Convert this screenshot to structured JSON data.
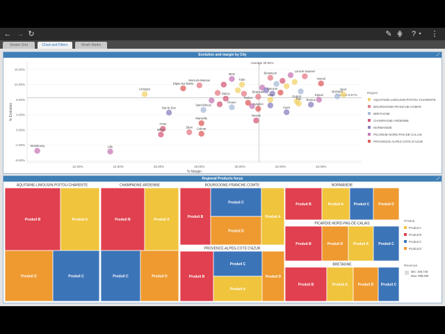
{
  "tabs": [
    {
      "label": "Simple Grid"
    },
    {
      "label": "Chart and Filters"
    },
    {
      "label": "Wrath Maths"
    }
  ],
  "scatter": {
    "title": "Evolution and margin by City",
    "ylabel": "% Evolution",
    "xlabel": "% Margin",
    "legend_title": "Region",
    "x_ticks": [
      "22.00%",
      "24.00%",
      "26.00%",
      "28.00%",
      "30.00%",
      "32.00%",
      "34.00%"
    ],
    "y_ticks": [
      "16.00%",
      "12.00%",
      "8.00%",
      "4.00%",
      "0.00%",
      "-4.00%",
      "-8.00%"
    ],
    "avg_y_label": "Average 30.94%",
    "avg_x_label": "Average 8.57%",
    "regions": [
      {
        "name": "AQUITAINE-LIMOUSIN-POITOU-CHARENTE",
        "color": "#f1d36a"
      },
      {
        "name": "BOURGOGNE-FRANCHE-COMTE",
        "color": "#e67b85"
      },
      {
        "name": "BRETAGNE",
        "color": "#a9bcd9"
      },
      {
        "name": "CHAMPAGNE-ARDENNE",
        "color": "#d45c7a"
      },
      {
        "name": "NORMANDIE",
        "color": "#8c7fc0"
      },
      {
        "name": "PICARDIE-NORD-PAS-DE-CALAIS",
        "color": "#c57ab6"
      },
      {
        "name": "PROVENCE-ALPES-COTE D'AZUR",
        "color": "#e05d5d"
      }
    ],
    "cities": [
      {
        "name": "Strasbourg",
        "x": 20.0,
        "y": -5.5,
        "r": 5
      },
      {
        "name": "Lille",
        "x": 23.6,
        "y": -5.7,
        "r": 5
      },
      {
        "name": "Limoges",
        "x": 25.3,
        "y": 9.5,
        "r": 0
      },
      {
        "name": "Arras",
        "x": 26.2,
        "y": 0.3,
        "r": 3
      },
      {
        "name": "Millon",
        "x": 26.1,
        "y": -1.2,
        "r": 3
      },
      {
        "name": "Bar-le-Duc",
        "x": 26.5,
        "y": 4.6,
        "r": 4
      },
      {
        "name": "Digne-les-Bains",
        "x": 27.2,
        "y": 11.0,
        "r": 6
      },
      {
        "name": "Mont-de-Marsan",
        "x": 28.0,
        "y": 11.8,
        "r": 1
      },
      {
        "name": "Saint-Brieuc",
        "x": 28.2,
        "y": 5.3,
        "r": 2
      },
      {
        "name": "Dijon",
        "x": 27.5,
        "y": -0.6,
        "r": 1
      },
      {
        "name": "Colmar",
        "x": 28.1,
        "y": -1.0,
        "r": 6
      },
      {
        "name": "Marseille",
        "x": 28.1,
        "y": 1.8,
        "r": 6
      },
      {
        "name": "Metz",
        "x": 29.6,
        "y": 13.5,
        "r": 5
      },
      {
        "name": "Tulle",
        "x": 30.1,
        "y": 12.0,
        "r": 0
      },
      {
        "name": "Nancy",
        "x": 29.3,
        "y": 8.3,
        "r": 3
      },
      {
        "name": "Rouen",
        "x": 29.6,
        "y": 6.0,
        "r": 2
      },
      {
        "name": "Toulon",
        "x": 30.4,
        "y": 7.2,
        "r": 6
      },
      {
        "name": "Beauvais",
        "x": 30.9,
        "y": 8.8,
        "r": 1
      },
      {
        "name": "Nevers",
        "x": 30.8,
        "y": 2.5,
        "r": 3
      },
      {
        "name": "Avignon",
        "x": 30.9,
        "y": 5.6,
        "r": 6
      },
      {
        "name": "Besançon",
        "x": 31.5,
        "y": 13.8,
        "r": 1
      },
      {
        "name": "Alençon",
        "x": 31.6,
        "y": 9.6,
        "r": 4
      },
      {
        "name": "Gex",
        "x": 31.5,
        "y": 8.0,
        "r": 0
      },
      {
        "name": "Caen",
        "x": 32.3,
        "y": 4.7,
        "r": 4
      },
      {
        "name": "Guéret",
        "x": 32.8,
        "y": 7.6,
        "r": 0
      },
      {
        "name": "Pau",
        "x": 32.9,
        "y": 7.0,
        "r": 0
      },
      {
        "name": "Lons-le-Saunier",
        "x": 33.2,
        "y": 14.2,
        "r": 1
      },
      {
        "name": "Vesoul",
        "x": 34.0,
        "y": 12.3,
        "r": 6
      },
      {
        "name": "Épinal",
        "x": 33.9,
        "y": 8.0,
        "r": 5
      },
      {
        "name": "Évreux",
        "x": 33.5,
        "y": 6.7,
        "r": 4
      },
      {
        "name": "Niort",
        "x": 35.1,
        "y": 9.4,
        "r": 0
      },
      {
        "name": "Quimper",
        "x": 34.8,
        "y": 8.9,
        "r": 2
      }
    ],
    "extra_points": [
      {
        "x": 29.2,
        "y": 12.0,
        "r": 3
      },
      {
        "x": 29.9,
        "y": 10.5,
        "r": 0
      },
      {
        "x": 28.9,
        "y": 9.8,
        "r": 1
      },
      {
        "x": 31.1,
        "y": 11.2,
        "r": 5
      },
      {
        "x": 31.3,
        "y": 10.5,
        "r": 4
      },
      {
        "x": 31.8,
        "y": 12.2,
        "r": 2
      },
      {
        "x": 32.1,
        "y": 13.0,
        "r": 3
      },
      {
        "x": 32.3,
        "y": 11.6,
        "r": 0
      },
      {
        "x": 32.7,
        "y": 12.7,
        "r": 0
      },
      {
        "x": 32.5,
        "y": 14.5,
        "r": 5
      },
      {
        "x": 32.0,
        "y": 9.9,
        "r": 6
      },
      {
        "x": 33.0,
        "y": 10.2,
        "r": 2
      },
      {
        "x": 31.5,
        "y": 6.5,
        "r": 4
      },
      {
        "x": 30.2,
        "y": 9.6,
        "r": 1
      },
      {
        "x": 28.6,
        "y": 7.8,
        "r": 5
      },
      {
        "x": 29.0,
        "y": 6.8,
        "r": 3
      },
      {
        "x": 30.6,
        "y": 6.3,
        "r": 5
      }
    ]
  },
  "treemap": {
    "title": "Regional Products focus",
    "legend_product_title": "Produit",
    "legend_revenue_title": "Revenue",
    "revenue_min": "Min: 196,749",
    "revenue_max": "Max: 985,609",
    "products": [
      {
        "name": "Produit A",
        "color": "#f0c43c"
      },
      {
        "name": "Produit B",
        "color": "#e0404f"
      },
      {
        "name": "Produit C",
        "color": "#3c74b8"
      },
      {
        "name": "Produit D",
        "color": "#ee9a30"
      }
    ],
    "groups": [
      {
        "name": "AQUITAINE-LIMOUSIN-POITOU-CHARENTE",
        "cells": [
          {
            "label": "Produit B",
            "p": 1
          },
          {
            "label": "Produit A",
            "p": 0
          },
          {
            "label": "Produit D",
            "p": 3
          },
          {
            "label": "Produit C",
            "p": 2
          }
        ]
      },
      {
        "name": "CHAMPAGNE-ARDENNE",
        "cells": [
          {
            "label": "Produit B",
            "p": 1
          },
          {
            "label": "Produit A",
            "p": 0
          },
          {
            "label": "Produit C",
            "p": 2
          },
          {
            "label": "Produit D",
            "p": 3
          }
        ]
      },
      {
        "name": "BOURGOGNE-FRANCHE-COMTE",
        "cells": [
          {
            "label": "Produit B",
            "p": 1
          },
          {
            "label": "Produit C",
            "p": 2
          },
          {
            "label": "Produit D",
            "p": 3
          },
          {
            "label": "Produit A",
            "p": 0
          }
        ]
      },
      {
        "name": "PROVENCE-ALPES-COTE D'AZUR",
        "cells": [
          {
            "label": "Produit B",
            "p": 1
          },
          {
            "label": "Produit C",
            "p": 2
          },
          {
            "label": "Produit A",
            "p": 0
          },
          {
            "label": "Produit D",
            "p": 3
          }
        ]
      },
      {
        "name": "NORMANDIE",
        "cells": [
          {
            "label": "Produit B",
            "p": 1
          },
          {
            "label": "Produit A",
            "p": 0
          },
          {
            "label": "Produit C",
            "p": 2
          },
          {
            "label": "Produit D",
            "p": 3
          }
        ]
      },
      {
        "name": "PICARDIE-NORD-PAS-DE-CALAIS",
        "cells": [
          {
            "label": "Produit B",
            "p": 1
          },
          {
            "label": "Produit D",
            "p": 3
          },
          {
            "label": "Produit A",
            "p": 0
          },
          {
            "label": "Produit C",
            "p": 2
          }
        ]
      },
      {
        "name": "BRETAGNE",
        "cells": [
          {
            "label": "Produit B",
            "p": 1
          },
          {
            "label": "Produit A",
            "p": 0
          },
          {
            "label": "Produit D",
            "p": 3
          },
          {
            "label": "Produit C",
            "p": 2
          }
        ]
      }
    ]
  }
}
